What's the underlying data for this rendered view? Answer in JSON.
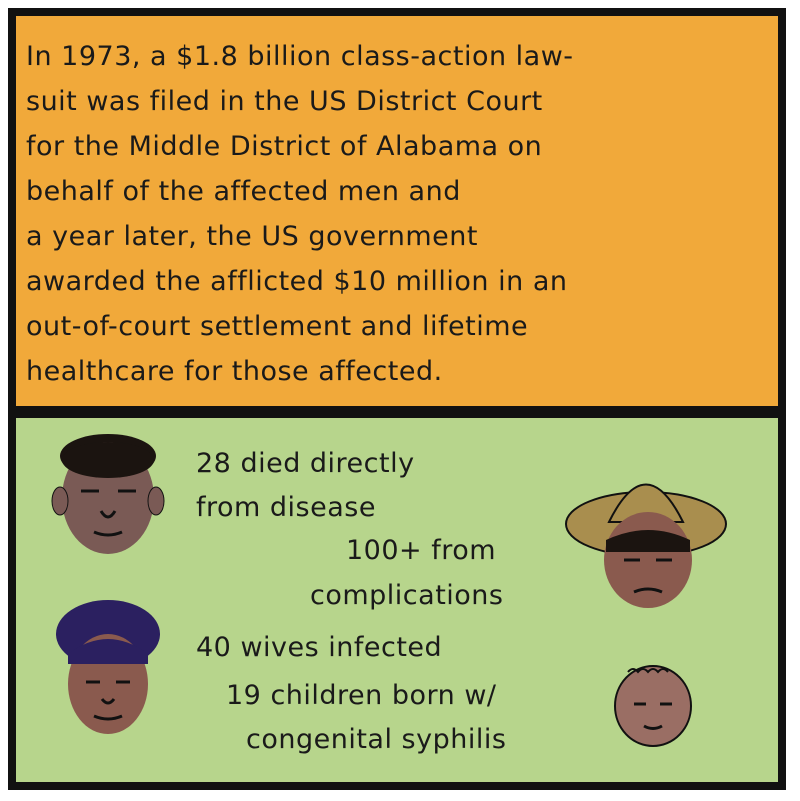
{
  "caption": {
    "lines": [
      "In 1973, a $1.8 billion class-action law-",
      "suit was filed in the US District Court",
      "for the Middle District of Alabama on",
      "behalf of the affected men and",
      "a year later, the US government",
      "awarded the afflicted $10 million in an",
      "out-of-court settlement and lifetime",
      "healthcare for those affected."
    ]
  },
  "stats": {
    "died_1": "28 died directly",
    "died_2": "from disease",
    "comp_1": "100+ from",
    "comp_2": "complications",
    "wives": "40 wives infected",
    "children_1": "19 children born w/",
    "children_2": "congenital syphilis"
  },
  "colors": {
    "top_panel": "#f1a93a",
    "bottom_panel": "#b7d58c",
    "border": "#111111"
  }
}
